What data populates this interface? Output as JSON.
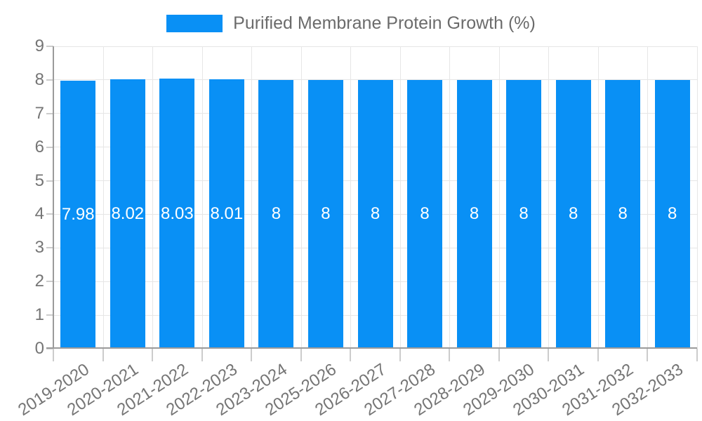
{
  "legend": {
    "label": "Purified Membrane Protein Growth (%)"
  },
  "chart_data": {
    "type": "bar",
    "title": "Purified Membrane Protein Growth (%)",
    "categories": [
      "2019-2020",
      "2020-2021",
      "2021-2022",
      "2022-2023",
      "2023-2024",
      "2025-2026",
      "2026-2027",
      "2027-2028",
      "2028-2029",
      "2029-2030",
      "2030-2031",
      "2031-2032",
      "2032-2033"
    ],
    "series": [
      {
        "name": "Purified Membrane Protein Growth (%)",
        "values": [
          7.98,
          8.02,
          8.03,
          8.01,
          8,
          8,
          8,
          8,
          8,
          8,
          8,
          8,
          8
        ]
      }
    ],
    "value_labels": [
      "7.98",
      "8.02",
      "8.03",
      "8.01",
      "8",
      "8",
      "8",
      "8",
      "8",
      "8",
      "8",
      "8",
      "8"
    ],
    "ylim": [
      0,
      9
    ],
    "y_ticks": [
      0,
      1,
      2,
      3,
      4,
      5,
      6,
      7,
      8,
      9
    ],
    "grid": true,
    "legend_position": "top-center",
    "colors": {
      "bar": "#0990f5",
      "grid": "#e6e6e6",
      "axis": "#9b9b9b",
      "tick": "#cccccc",
      "axis_text": "#757575",
      "legend_text": "#6b6b6b",
      "value_label": "#ffffff"
    }
  }
}
